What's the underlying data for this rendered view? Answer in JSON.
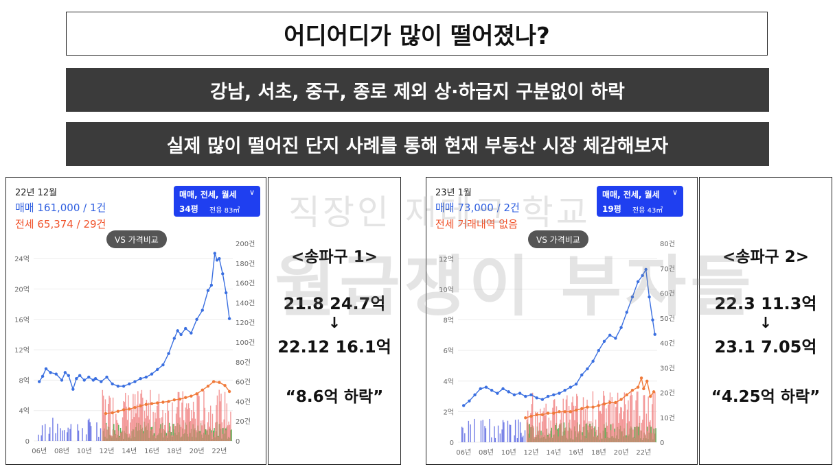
{
  "header": {
    "title": "어디어디가 많이 떨어졌나?",
    "banner1": "강남, 서초, 중구, 종로 제외 상·하급지 구분없이 하락",
    "banner2": "실제 많이 떨어진 단지 사례를 통해 현재 부동산 시장 체감해보자"
  },
  "watermark": {
    "line1": "직장인 재테크 학교",
    "line2": "월급쟁이 부자들"
  },
  "colors": {
    "sale": "#3a6fe0",
    "jeonse": "#f07a3a",
    "filter": "#1f3ff0",
    "banner": "#3b3b3b",
    "barBlue": "#4f5ce0",
    "barRed": "#f08080",
    "barGreen": "#3da83d"
  },
  "panels": [
    {
      "date": "22년 12월",
      "sale_line": "매매 161,000 / 1건",
      "jeonse_line": "전세 65,374 / 29건",
      "filter_label": "매매, 전세, 월세",
      "filter_size": "34평",
      "filter_area": "전용 83㎡",
      "vs_label": "VS 가격비교",
      "info": {
        "title": "<송파구 1>",
        "before": "21.8 24.7억",
        "arrow": "↓",
        "after": "22.12 16.1억",
        "drop": "“8.6억 하락”"
      },
      "chart_data": {
        "type": "line",
        "x_ticks": [
          "06년",
          "08년",
          "10년",
          "12년",
          "14년",
          "16년",
          "18년",
          "20년",
          "22년"
        ],
        "y_left_ticks": [
          "0",
          "4억",
          "8억",
          "12억",
          "16억",
          "20억",
          "24억"
        ],
        "y_right_ticks": [
          "0",
          "20건",
          "40건",
          "60건",
          "80건",
          "100건",
          "120건",
          "140건",
          "160건",
          "180건",
          "200건"
        ],
        "y_left_range": [
          0,
          26
        ],
        "y_right_range": [
          0,
          200
        ],
        "x_range": [
          2005.5,
          2023.2
        ],
        "sale": [
          [
            2006,
            7.8
          ],
          [
            2006.3,
            8.5
          ],
          [
            2006.6,
            9.5
          ],
          [
            2007,
            9.0
          ],
          [
            2007.5,
            8.8
          ],
          [
            2008,
            8.0
          ],
          [
            2008.3,
            9.0
          ],
          [
            2008.6,
            8.6
          ],
          [
            2009,
            6.8
          ],
          [
            2009.3,
            8.2
          ],
          [
            2009.6,
            8.6
          ],
          [
            2010,
            8.0
          ],
          [
            2010.4,
            8.4
          ],
          [
            2010.8,
            8.0
          ],
          [
            2011,
            8.2
          ],
          [
            2011.5,
            7.8
          ],
          [
            2012,
            8.4
          ],
          [
            2012.5,
            7.5
          ],
          [
            2013,
            7.2
          ],
          [
            2013.5,
            7.2
          ],
          [
            2014,
            7.5
          ],
          [
            2014.5,
            7.8
          ],
          [
            2015,
            8.2
          ],
          [
            2015.5,
            8.4
          ],
          [
            2016,
            8.8
          ],
          [
            2016.5,
            9.4
          ],
          [
            2017,
            10.0
          ],
          [
            2017.5,
            11.5
          ],
          [
            2018,
            13.5
          ],
          [
            2018.3,
            14.5
          ],
          [
            2018.6,
            14.0
          ],
          [
            2019,
            14.8
          ],
          [
            2019.5,
            14.2
          ],
          [
            2020,
            16.0
          ],
          [
            2020.5,
            17.2
          ],
          [
            2021,
            19.8
          ],
          [
            2021.3,
            20.5
          ],
          [
            2021.6,
            24.7
          ],
          [
            2021.8,
            23.8
          ],
          [
            2022,
            24.0
          ],
          [
            2022.3,
            22.0
          ],
          [
            2022.6,
            19.5
          ],
          [
            2022.9,
            16.1
          ]
        ],
        "jeonse": [
          [
            2011.9,
            3.6
          ],
          [
            2012.5,
            3.7
          ],
          [
            2013,
            3.9
          ],
          [
            2013.5,
            4.1
          ],
          [
            2014,
            4.2
          ],
          [
            2014.5,
            4.4
          ],
          [
            2015,
            4.6
          ],
          [
            2015.5,
            4.8
          ],
          [
            2016,
            4.9
          ],
          [
            2016.5,
            5.0
          ],
          [
            2017,
            5.1
          ],
          [
            2017.5,
            5.2
          ],
          [
            2018,
            5.4
          ],
          [
            2018.5,
            5.5
          ],
          [
            2019,
            5.7
          ],
          [
            2019.5,
            5.9
          ],
          [
            2020,
            6.2
          ],
          [
            2020.5,
            6.7
          ],
          [
            2021,
            7.2
          ],
          [
            2021.5,
            7.8
          ],
          [
            2022,
            7.7
          ],
          [
            2022.5,
            7.3
          ],
          [
            2022.9,
            6.5
          ]
        ]
      }
    },
    {
      "date": "23년 1월",
      "sale_line": "매매 73,000 / 2건",
      "jeonse_line": "전세 거래내역 없음",
      "filter_label": "매매, 전세, 월세",
      "filter_size": "19평",
      "filter_area": "전용 43㎡",
      "vs_label": "VS 가격비교",
      "info": {
        "title": "<송파구 2>",
        "before": "22.3 11.3억",
        "arrow": "↓",
        "after": "23.1 7.05억",
        "drop": "“4.25억 하락”"
      },
      "chart_data": {
        "type": "line",
        "x_ticks": [
          "06년",
          "08년",
          "10년",
          "12년",
          "14년",
          "16년",
          "18년",
          "20년",
          "22년"
        ],
        "y_left_ticks": [
          "0",
          "2억",
          "4억",
          "6억",
          "8억",
          "10억",
          "12억"
        ],
        "y_right_ticks": [
          "0",
          "10건",
          "20건",
          "30건",
          "40건",
          "50건",
          "60건",
          "70건",
          "80건"
        ],
        "y_left_range": [
          0,
          13
        ],
        "y_right_range": [
          0,
          80
        ],
        "x_range": [
          2005.5,
          2023.2
        ],
        "sale": [
          [
            2006,
            2.4
          ],
          [
            2006.5,
            2.7
          ],
          [
            2007,
            3.1
          ],
          [
            2007.5,
            3.5
          ],
          [
            2008,
            3.6
          ],
          [
            2008.5,
            3.4
          ],
          [
            2009,
            3.2
          ],
          [
            2009.5,
            3.5
          ],
          [
            2010,
            3.3
          ],
          [
            2010.5,
            3.1
          ],
          [
            2011,
            3.2
          ],
          [
            2011.5,
            3.0
          ],
          [
            2012,
            3.1
          ],
          [
            2012.5,
            2.9
          ],
          [
            2013,
            2.8
          ],
          [
            2013.5,
            3.0
          ],
          [
            2014,
            3.1
          ],
          [
            2014.5,
            3.2
          ],
          [
            2015,
            3.4
          ],
          [
            2015.5,
            3.6
          ],
          [
            2016,
            3.8
          ],
          [
            2016.5,
            4.4
          ],
          [
            2017,
            4.8
          ],
          [
            2017.5,
            5.3
          ],
          [
            2018,
            6.0
          ],
          [
            2018.5,
            6.6
          ],
          [
            2019,
            7.0
          ],
          [
            2019.5,
            6.8
          ],
          [
            2020,
            7.5
          ],
          [
            2020.5,
            8.5
          ],
          [
            2021,
            9.5
          ],
          [
            2021.5,
            10.5
          ],
          [
            2021.9,
            10.9
          ],
          [
            2022.2,
            11.3
          ],
          [
            2022.5,
            9.5
          ],
          [
            2022.8,
            8.0
          ],
          [
            2023.0,
            7.05
          ]
        ],
        "jeonse": [
          [
            2011.5,
            1.6
          ],
          [
            2012,
            1.7
          ],
          [
            2012.5,
            1.8
          ],
          [
            2013,
            1.8
          ],
          [
            2013.5,
            1.9
          ],
          [
            2014,
            1.9
          ],
          [
            2014.5,
            2.0
          ],
          [
            2015,
            2.0
          ],
          [
            2015.5,
            2.0
          ],
          [
            2016,
            2.1
          ],
          [
            2016.5,
            2.2
          ],
          [
            2017,
            2.3
          ],
          [
            2017.5,
            2.3
          ],
          [
            2018,
            2.4
          ],
          [
            2018.5,
            2.5
          ],
          [
            2019,
            2.6
          ],
          [
            2019.5,
            2.6
          ],
          [
            2020,
            2.8
          ],
          [
            2020.5,
            3.1
          ],
          [
            2021,
            3.4
          ],
          [
            2021.5,
            3.6
          ],
          [
            2021.8,
            4.2
          ],
          [
            2022,
            3.5
          ],
          [
            2022.3,
            4.0
          ],
          [
            2022.6,
            3.0
          ],
          [
            2022.9,
            3.3
          ]
        ]
      }
    }
  ]
}
